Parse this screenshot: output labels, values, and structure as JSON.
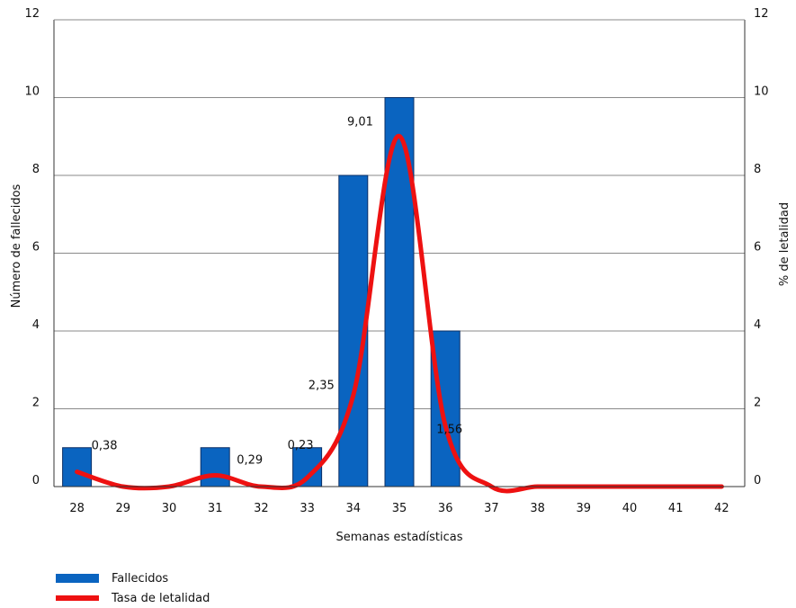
{
  "chart_data": {
    "type": "bar",
    "xlabel": "Semanas estadísticas",
    "ylabel_left": "Número de fallecidos",
    "ylabel_right": "% de letalidad",
    "categories": [
      "28",
      "29",
      "30",
      "31",
      "32",
      "33",
      "34",
      "35",
      "36",
      "37",
      "38",
      "39",
      "40",
      "41",
      "42"
    ],
    "ylim_left": [
      0,
      12
    ],
    "ylim_right": [
      0,
      12
    ],
    "yticks_left": [
      0,
      2,
      4,
      6,
      8,
      10,
      12
    ],
    "yticks_right": [
      0,
      2,
      4,
      6,
      8,
      10,
      12
    ],
    "grid": true,
    "legend_position": "bottom-left",
    "series": [
      {
        "name": "Fallecidos",
        "kind": "bar",
        "axis": "left",
        "color": "#0a64c0",
        "values": [
          1,
          0,
          0,
          1,
          0,
          1,
          8,
          10,
          4,
          0,
          0,
          0,
          0,
          0,
          0
        ]
      },
      {
        "name": "Tasa de letalidad",
        "kind": "line",
        "axis": "right",
        "color": "#ee1111",
        "values": [
          0.38,
          0,
          0,
          0.29,
          0,
          0.23,
          2.35,
          9.01,
          1.56,
          0,
          0,
          0,
          0,
          0,
          0
        ],
        "data_labels": [
          "0,38",
          "",
          "",
          "0,29",
          "",
          "0,23",
          "2,35",
          "9,01",
          "1,56",
          "",
          "",
          "",
          "",
          "",
          ""
        ]
      }
    ]
  }
}
